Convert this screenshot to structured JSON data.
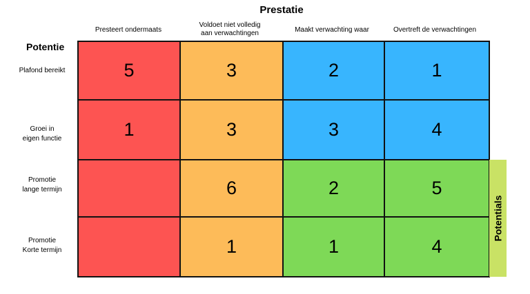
{
  "title": "Prestatie",
  "columns": [
    "Presteert ondermaats",
    "Voldoet niet volledig\naan verwachtingen",
    "Maakt verwachting waar",
    "Overtreft de verwachtingen"
  ],
  "row_axis_title": "Potentie",
  "rows": [
    "Plafond bereikt",
    "Groei in\neigen functie",
    "Promotie\nlange termijn",
    "Promotie\nKorte termijn"
  ],
  "grid": [
    [
      "5",
      "3",
      "2",
      "1"
    ],
    [
      "1",
      "3",
      "3",
      "4"
    ],
    [
      "",
      "6",
      "2",
      "5"
    ],
    [
      "",
      "1",
      "1",
      "4"
    ]
  ],
  "colors": {
    "red": "#fd5452",
    "orange": "#fdbb59",
    "blue": "#38b5fe",
    "green": "#7ed957",
    "potentials": "#c9e265"
  },
  "side_label": "Potentials"
}
